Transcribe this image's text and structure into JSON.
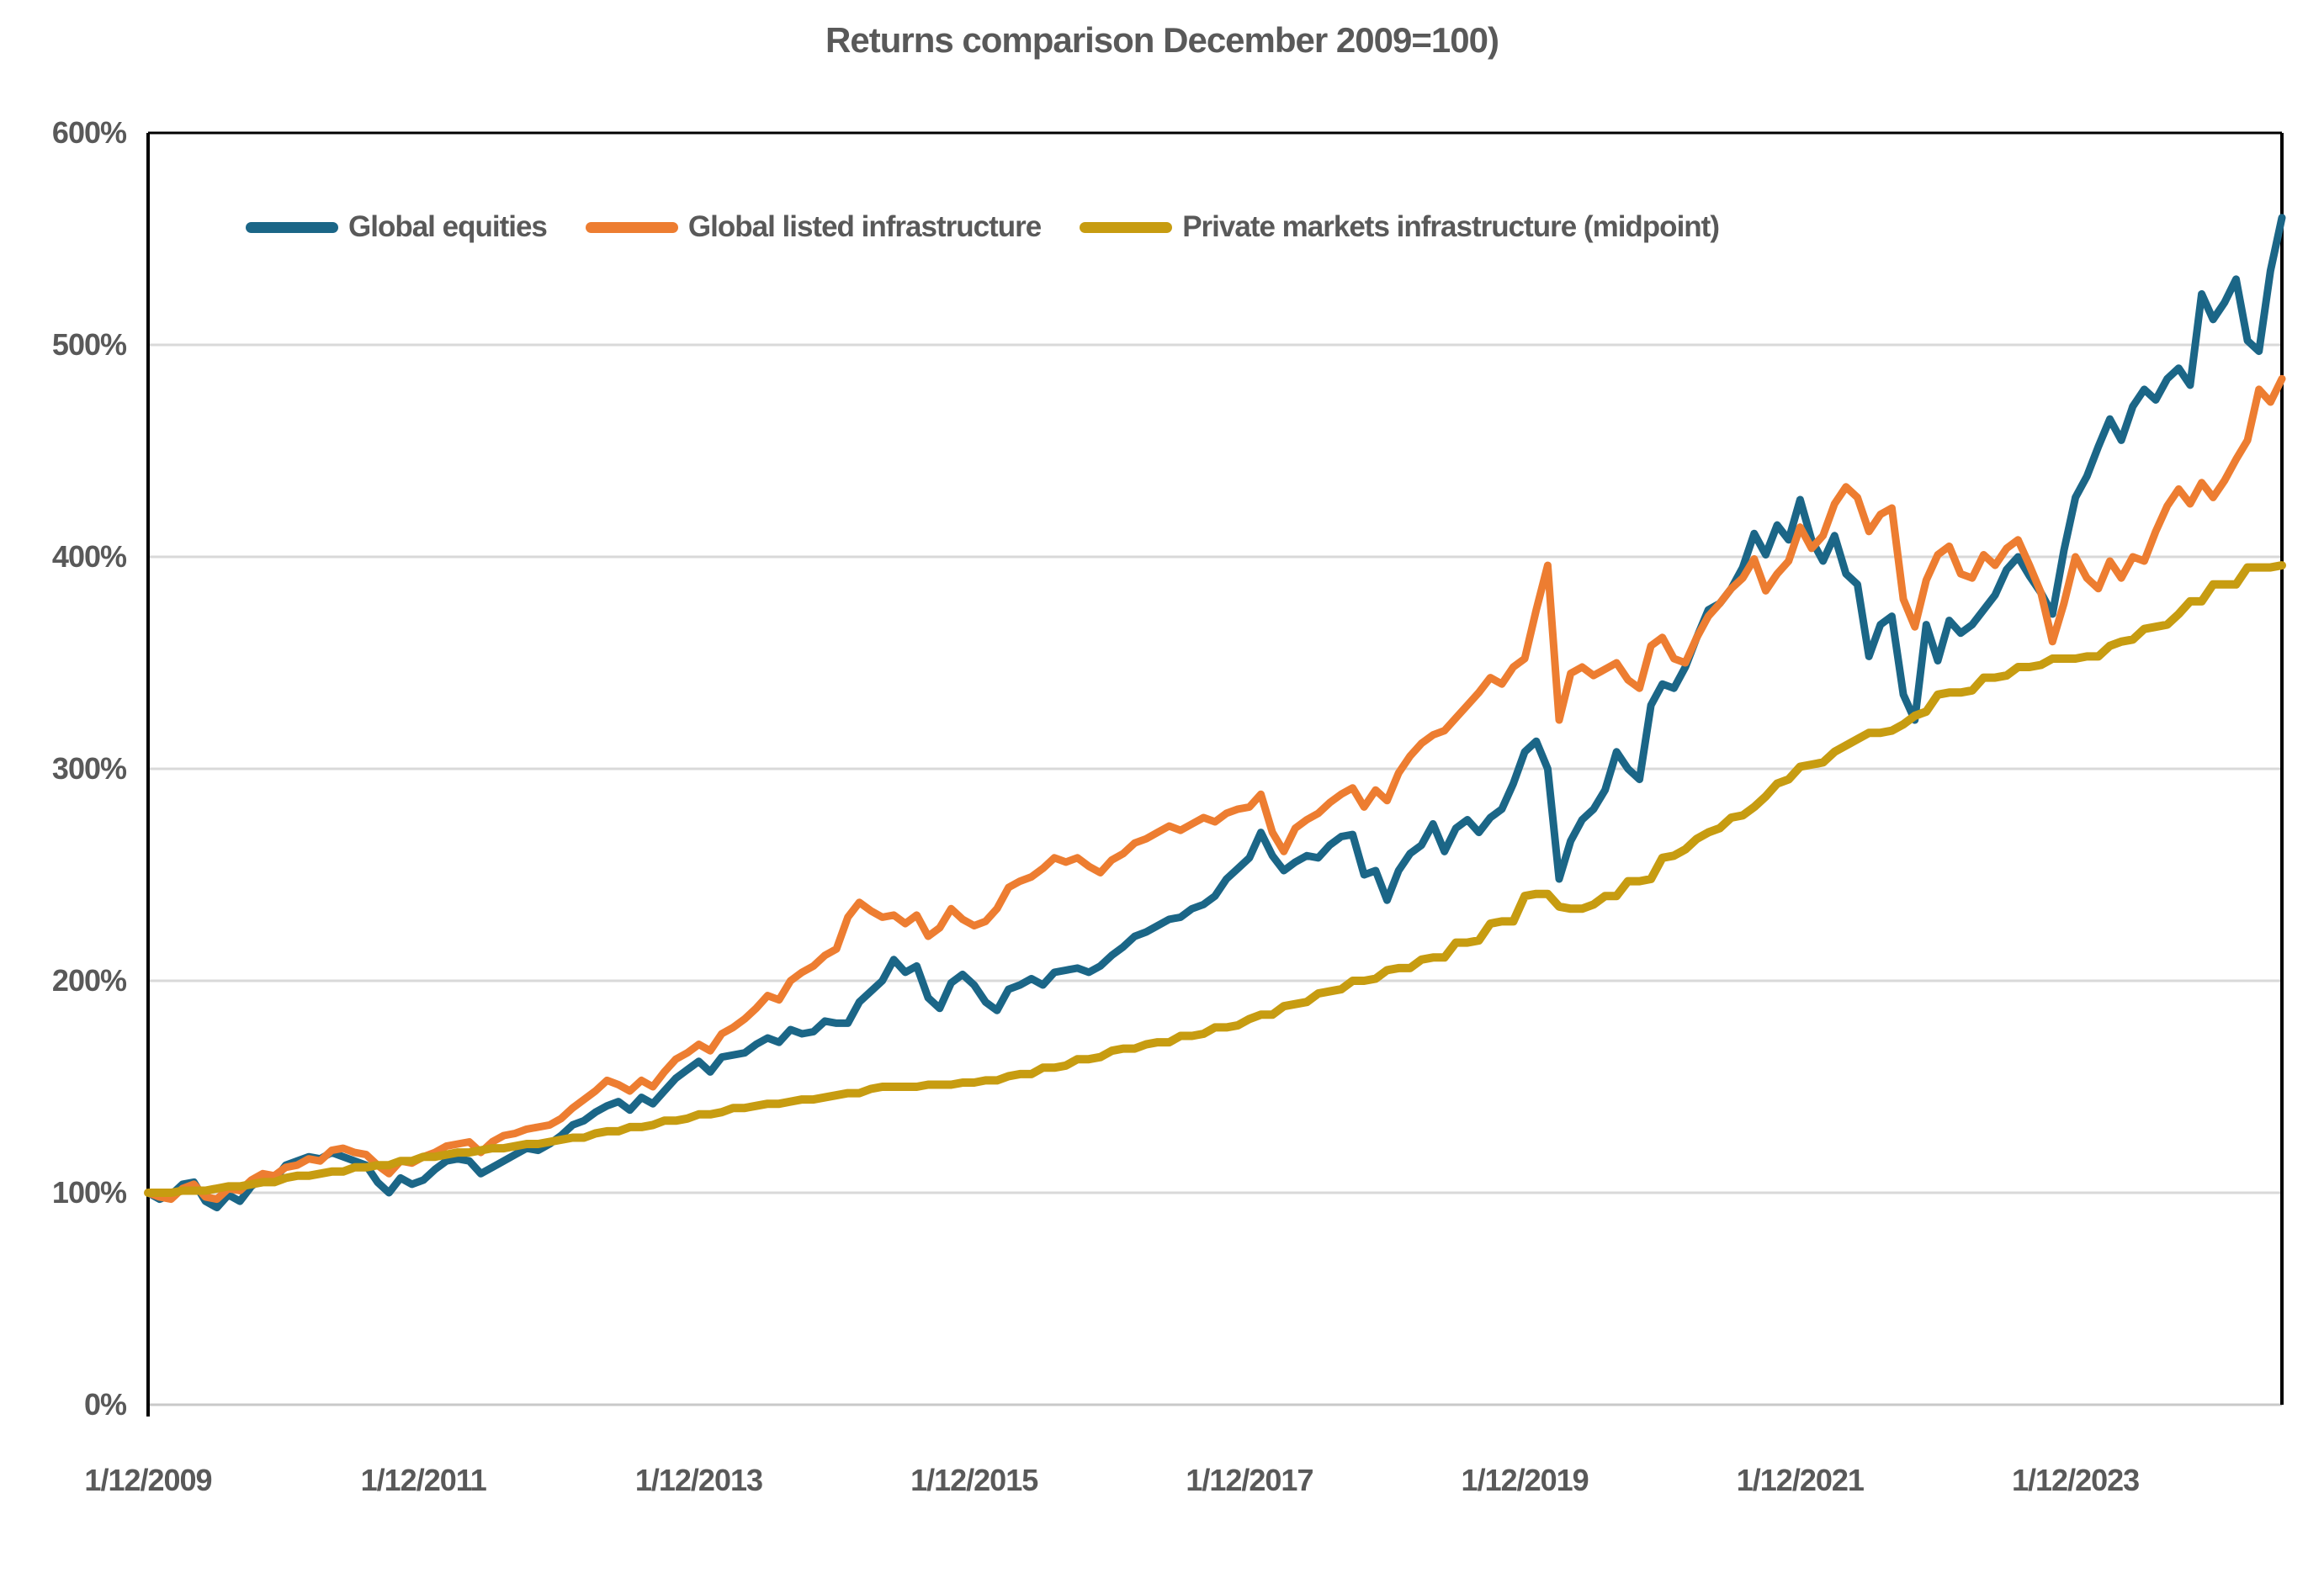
{
  "title": "Returns comparison December 2009=100)",
  "colors": {
    "axis_text": "#595959",
    "gridline": "#D9D9D9",
    "plot_border": "#000000",
    "baseline": "#C9C9C9",
    "background": "#FFFFFF"
  },
  "chart_data": {
    "type": "line",
    "title": "Returns comparison December 2009=100)",
    "xlabel": "",
    "ylabel": "",
    "ylim": [
      0,
      600
    ],
    "grid": "horizontal",
    "legend_position": "top-inside",
    "x_interval": "monthly",
    "x_start": "1/12/2009",
    "x_end": "1/6/2025",
    "x_tick_labels": [
      "1/12/2009",
      "1/12/2011",
      "1/12/2013",
      "1/12/2015",
      "1/12/2017",
      "1/12/2019",
      "1/12/2021",
      "1/12/2023"
    ],
    "x_tick_month_indices": [
      0,
      24,
      48,
      72,
      96,
      120,
      144,
      168
    ],
    "y_ticks": [
      {
        "label": "0%",
        "value": 0
      },
      {
        "label": "100%",
        "value": 100
      },
      {
        "label": "200%",
        "value": 200
      },
      {
        "label": "300%",
        "value": 300
      },
      {
        "label": "400%",
        "value": 400
      },
      {
        "label": "500%",
        "value": 500
      },
      {
        "label": "600%",
        "value": 600
      }
    ],
    "series": [
      {
        "name": "Global equities",
        "color": "#1B6687",
        "stroke_width": 9,
        "values": [
          100,
          97,
          99,
          104,
          105,
          96,
          93,
          99,
          96,
          103,
          107,
          106,
          113,
          115,
          117,
          116,
          119,
          117,
          115,
          113,
          105,
          100,
          107,
          104,
          106,
          111,
          115,
          116,
          115,
          109,
          112,
          115,
          118,
          121,
          120,
          123,
          127,
          132,
          134,
          138,
          141,
          143,
          139,
          145,
          142,
          148,
          154,
          158,
          162,
          157,
          164,
          165,
          166,
          170,
          173,
          171,
          177,
          175,
          176,
          181,
          180,
          180,
          190,
          195,
          200,
          210,
          204,
          207,
          192,
          187,
          199,
          203,
          198,
          190,
          186,
          196,
          198,
          201,
          198,
          204,
          205,
          206,
          204,
          207,
          212,
          216,
          221,
          223,
          226,
          229,
          230,
          234,
          236,
          240,
          248,
          253,
          258,
          270,
          259,
          252,
          256,
          259,
          258,
          264,
          268,
          269,
          250,
          252,
          238,
          252,
          260,
          264,
          274,
          261,
          272,
          276,
          270,
          277,
          281,
          293,
          308,
          313,
          300,
          248,
          266,
          276,
          281,
          290,
          308,
          300,
          295,
          330,
          340,
          338,
          348,
          362,
          375,
          378,
          385,
          395,
          411,
          401,
          415,
          408,
          427,
          408,
          398,
          410,
          392,
          387,
          353,
          368,
          372,
          335,
          323,
          368,
          351,
          370,
          364,
          368,
          375,
          382,
          394,
          400,
          391,
          383,
          373,
          403,
          428,
          438,
          452,
          465,
          455,
          471,
          479,
          474,
          484,
          489,
          481,
          524,
          512,
          520,
          531,
          502,
          497,
          535,
          560
        ]
      },
      {
        "name": "Global listed infrastructure",
        "color": "#ED7D31",
        "stroke_width": 9,
        "values": [
          100,
          98,
          97,
          102,
          104,
          98,
          97,
          102,
          101,
          106,
          109,
          108,
          112,
          113,
          116,
          115,
          120,
          121,
          119,
          118,
          113,
          109,
          115,
          114,
          117,
          119,
          122,
          123,
          124,
          119,
          124,
          127,
          128,
          130,
          131,
          132,
          135,
          140,
          144,
          148,
          153,
          151,
          148,
          153,
          150,
          157,
          163,
          166,
          170,
          167,
          175,
          178,
          182,
          187,
          193,
          191,
          200,
          204,
          207,
          212,
          215,
          230,
          237,
          233,
          230,
          231,
          227,
          231,
          221,
          225,
          234,
          229,
          226,
          228,
          234,
          244,
          247,
          249,
          253,
          258,
          256,
          258,
          254,
          251,
          257,
          260,
          265,
          267,
          270,
          273,
          271,
          274,
          277,
          275,
          279,
          281,
          282,
          288,
          270,
          261,
          272,
          276,
          279,
          284,
          288,
          291,
          282,
          290,
          285,
          298,
          306,
          312,
          316,
          318,
          324,
          330,
          336,
          343,
          340,
          348,
          352,
          375,
          396,
          323,
          345,
          348,
          344,
          347,
          350,
          342,
          338,
          358,
          362,
          352,
          350,
          362,
          372,
          378,
          385,
          390,
          399,
          384,
          392,
          398,
          414,
          404,
          410,
          425,
          433,
          428,
          412,
          420,
          423,
          380,
          367,
          389,
          401,
          405,
          392,
          390,
          401,
          396,
          404,
          408,
          396,
          383,
          360,
          378,
          400,
          390,
          385,
          398,
          390,
          400,
          398,
          412,
          424,
          432,
          425,
          435,
          428,
          436,
          446,
          455,
          479,
          473,
          484
        ]
      },
      {
        "name": "Private markets infrastructure (midpoint)",
        "color": "#C79C11",
        "stroke_width": 10,
        "values": [
          100,
          100,
          100,
          101,
          101,
          101,
          102,
          103,
          103,
          104,
          105,
          105,
          107,
          108,
          108,
          109,
          110,
          110,
          112,
          112,
          113,
          113,
          115,
          115,
          117,
          117,
          118,
          119,
          119,
          120,
          121,
          121,
          122,
          123,
          123,
          124,
          125,
          126,
          126,
          128,
          129,
          129,
          131,
          131,
          132,
          134,
          134,
          135,
          137,
          137,
          138,
          140,
          140,
          141,
          142,
          142,
          143,
          144,
          144,
          145,
          146,
          147,
          147,
          149,
          150,
          150,
          150,
          150,
          151,
          151,
          151,
          152,
          152,
          153,
          153,
          155,
          156,
          156,
          159,
          159,
          160,
          163,
          163,
          164,
          167,
          168,
          168,
          170,
          171,
          171,
          174,
          174,
          175,
          178,
          178,
          179,
          182,
          184,
          184,
          188,
          189,
          190,
          194,
          195,
          196,
          200,
          200,
          201,
          205,
          206,
          206,
          210,
          211,
          211,
          218,
          218,
          219,
          227,
          228,
          228,
          240,
          241,
          241,
          235,
          234,
          234,
          236,
          240,
          240,
          247,
          247,
          248,
          258,
          259,
          262,
          267,
          270,
          272,
          277,
          278,
          282,
          287,
          293,
          295,
          301,
          302,
          303,
          308,
          311,
          314,
          317,
          317,
          318,
          321,
          325,
          327,
          335,
          336,
          336,
          337,
          343,
          343,
          344,
          348,
          348,
          349,
          352,
          352,
          352,
          353,
          353,
          358,
          360,
          361,
          366,
          367,
          368,
          373,
          379,
          379,
          387,
          387,
          387,
          395,
          395,
          395,
          396
        ]
      }
    ]
  }
}
